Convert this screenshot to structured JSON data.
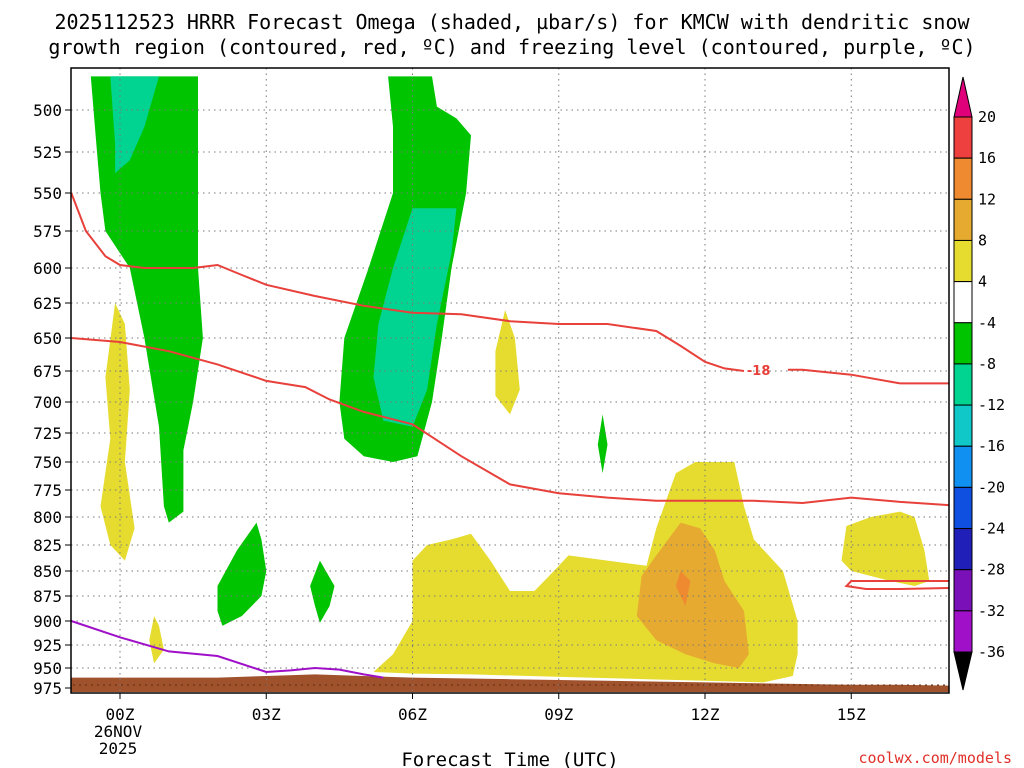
{
  "title": {
    "line1": "2025112523 HRRR Forecast Omega (shaded, µbar/s) for KMCW with dendritic snow",
    "line2": "growth region (contoured, red, ºC) and freezing level (contoured, purple, ºC)"
  },
  "chart_data": {
    "type": "contour",
    "title": "2025112523 HRRR Forecast Omega (shaded, µbar/s) for KMCW with dendritic snow growth region (contoured, red, ºC) and freezing level (contoured, purple, ºC)",
    "xlabel": "Forecast Time (UTC)",
    "ylabel": "",
    "xlim": [
      -1,
      17
    ],
    "ylim": [
      975,
      480
    ],
    "x_ticks": [
      {
        "hour": 0,
        "label": "00Z",
        "sub1": "26NOV",
        "sub2": "2025"
      },
      {
        "hour": 3,
        "label": "03Z"
      },
      {
        "hour": 6,
        "label": "06Z"
      },
      {
        "hour": 9,
        "label": "09Z"
      },
      {
        "hour": 12,
        "label": "12Z"
      },
      {
        "hour": 15,
        "label": "15Z"
      }
    ],
    "y_ticks": [
      500,
      525,
      550,
      575,
      600,
      625,
      650,
      675,
      700,
      725,
      750,
      775,
      800,
      825,
      850,
      875,
      900,
      925,
      950,
      975
    ],
    "colorbar": {
      "labels": [
        "20",
        "16",
        "12",
        "8",
        "4",
        "-4",
        "-8",
        "-12",
        "-16",
        "-20",
        "-24",
        "-28",
        "-32",
        "-36"
      ],
      "colors": [
        "#e0007a",
        "#ef4040",
        "#ef8a30",
        "#e6aa30",
        "#e6dc30",
        "#ffffff",
        "#00c400",
        "#00d490",
        "#10c8c8",
        "#1090f0",
        "#1050e0",
        "#2020b8",
        "#7a10b8",
        "#a010c8",
        "#a0a0a0",
        "#000000"
      ]
    },
    "contour_labels": [
      {
        "text": "-18",
        "hour": 13.1,
        "pressure": 675
      }
    ],
    "fill_regions": [
      {
        "name": "omega-fill-green-A",
        "color": "#00c400",
        "points": [
          [
            -0.6,
            480
          ],
          [
            -0.5,
            515
          ],
          [
            -0.4,
            550
          ],
          [
            -0.3,
            575
          ],
          [
            0.2,
            600
          ],
          [
            0.5,
            650
          ],
          [
            0.8,
            720
          ],
          [
            0.9,
            790
          ],
          [
            1.0,
            805
          ],
          [
            1.3,
            795
          ],
          [
            1.3,
            740
          ],
          [
            1.5,
            700
          ],
          [
            1.7,
            650
          ],
          [
            1.6,
            600
          ],
          [
            1.6,
            540
          ],
          [
            1.6,
            480
          ]
        ]
      },
      {
        "name": "omega-fill-teal-A",
        "color": "#00d490",
        "points": [
          [
            -0.2,
            480
          ],
          [
            -0.1,
            520
          ],
          [
            -0.1,
            538
          ],
          [
            0.2,
            530
          ],
          [
            0.5,
            510
          ],
          [
            0.8,
            480
          ]
        ]
      },
      {
        "name": "omega-fill-green-B",
        "color": "#00c400",
        "points": [
          [
            5.5,
            480
          ],
          [
            5.6,
            510
          ],
          [
            5.6,
            550
          ],
          [
            5.1,
            600
          ],
          [
            4.6,
            650
          ],
          [
            4.5,
            700
          ],
          [
            4.6,
            730
          ],
          [
            5.0,
            745
          ],
          [
            5.6,
            750
          ],
          [
            6.1,
            745
          ],
          [
            6.4,
            700
          ],
          [
            6.6,
            650
          ],
          [
            6.8,
            600
          ],
          [
            7.1,
            550
          ],
          [
            7.2,
            515
          ],
          [
            6.9,
            505
          ],
          [
            6.5,
            498
          ],
          [
            6.4,
            480
          ]
        ]
      },
      {
        "name": "omega-fill-teal-B",
        "color": "#00d490",
        "points": [
          [
            6.0,
            560
          ],
          [
            5.6,
            600
          ],
          [
            5.3,
            640
          ],
          [
            5.2,
            680
          ],
          [
            5.4,
            715
          ],
          [
            6.0,
            720
          ],
          [
            6.3,
            690
          ],
          [
            6.5,
            640
          ],
          [
            6.8,
            590
          ],
          [
            6.9,
            560
          ]
        ]
      },
      {
        "name": "omega-fill-green-C",
        "color": "#00c400",
        "points": [
          [
            2.8,
            805
          ],
          [
            2.4,
            830
          ],
          [
            2.0,
            865
          ],
          [
            2.0,
            890
          ],
          [
            2.1,
            905
          ],
          [
            2.5,
            895
          ],
          [
            2.9,
            875
          ],
          [
            3.0,
            850
          ],
          [
            2.9,
            820
          ]
        ]
      },
      {
        "name": "omega-fill-green-D",
        "color": "#00c400",
        "points": [
          [
            4.1,
            840
          ],
          [
            3.9,
            865
          ],
          [
            4.0,
            885
          ],
          [
            4.1,
            902
          ],
          [
            4.3,
            885
          ],
          [
            4.4,
            865
          ]
        ]
      },
      {
        "name": "omega-fill-green-E",
        "color": "#00c400",
        "points": [
          [
            9.9,
            710
          ],
          [
            9.8,
            735
          ],
          [
            9.9,
            760
          ],
          [
            10.0,
            735
          ]
        ]
      },
      {
        "name": "omega-fill-yellow-A",
        "color": "#e6dc30",
        "points": [
          [
            -0.1,
            625
          ],
          [
            -0.3,
            680
          ],
          [
            -0.2,
            730
          ],
          [
            -0.4,
            790
          ],
          [
            -0.2,
            825
          ],
          [
            0.1,
            840
          ],
          [
            0.3,
            810
          ],
          [
            0.1,
            750
          ],
          [
            0.2,
            690
          ],
          [
            0.1,
            640
          ]
        ]
      },
      {
        "name": "omega-fill-yellow-B",
        "color": "#e6dc30",
        "points": [
          [
            0.7,
            895
          ],
          [
            0.6,
            920
          ],
          [
            0.7,
            945
          ],
          [
            0.9,
            930
          ],
          [
            0.8,
            905
          ]
        ]
      },
      {
        "name": "omega-fill-yellow-C",
        "color": "#e6dc30",
        "points": [
          [
            7.9,
            630
          ],
          [
            7.7,
            660
          ],
          [
            7.7,
            695
          ],
          [
            8.0,
            710
          ],
          [
            8.2,
            690
          ],
          [
            8.1,
            650
          ]
        ]
      },
      {
        "name": "omega-fill-yellow-D",
        "color": "#e6dc30",
        "points": [
          [
            5.2,
            955
          ],
          [
            5.6,
            935
          ],
          [
            6.0,
            900
          ],
          [
            6.0,
            840
          ],
          [
            6.3,
            825
          ],
          [
            6.8,
            820
          ],
          [
            7.2,
            815
          ],
          [
            7.6,
            840
          ],
          [
            8.0,
            870
          ],
          [
            8.5,
            870
          ],
          [
            8.9,
            850
          ],
          [
            9.2,
            835
          ],
          [
            10.0,
            840
          ],
          [
            10.8,
            845
          ],
          [
            11.0,
            810
          ],
          [
            11.4,
            760
          ],
          [
            11.8,
            750
          ],
          [
            12.6,
            750
          ],
          [
            12.8,
            790
          ],
          [
            13.0,
            820
          ],
          [
            13.6,
            850
          ],
          [
            13.9,
            900
          ],
          [
            13.9,
            935
          ],
          [
            13.8,
            960
          ],
          [
            13.2,
            968
          ],
          [
            12.0,
            966
          ],
          [
            10.8,
            964
          ],
          [
            9.6,
            962
          ],
          [
            8.4,
            960
          ],
          [
            7.2,
            958
          ],
          [
            6.0,
            957
          ]
        ]
      },
      {
        "name": "omega-fill-orange-A",
        "color": "#e6aa30",
        "points": [
          [
            11.5,
            805
          ],
          [
            11.0,
            835
          ],
          [
            10.7,
            855
          ],
          [
            10.6,
            895
          ],
          [
            11.0,
            920
          ],
          [
            11.6,
            935
          ],
          [
            12.2,
            945
          ],
          [
            12.7,
            950
          ],
          [
            12.9,
            935
          ],
          [
            12.8,
            890
          ],
          [
            12.4,
            860
          ],
          [
            12.2,
            830
          ],
          [
            11.9,
            810
          ]
        ]
      },
      {
        "name": "omega-fill-red-A",
        "color": "#ef8a30",
        "points": [
          [
            11.5,
            850
          ],
          [
            11.4,
            865
          ],
          [
            11.6,
            885
          ],
          [
            11.7,
            860
          ]
        ]
      },
      {
        "name": "omega-fill-yellow-E",
        "color": "#e6dc30",
        "points": [
          [
            14.9,
            808
          ],
          [
            14.8,
            840
          ],
          [
            15.0,
            850
          ],
          [
            15.8,
            860
          ],
          [
            16.3,
            865
          ],
          [
            16.6,
            860
          ],
          [
            16.5,
            830
          ],
          [
            16.3,
            800
          ],
          [
            16.0,
            795
          ],
          [
            15.4,
            800
          ]
        ]
      }
    ],
    "contours": [
      {
        "name": "dgz-upper-line",
        "color": "#e8403a",
        "points": [
          [
            -1,
            550
          ],
          [
            -0.7,
            575
          ],
          [
            -0.3,
            592
          ],
          [
            0,
            598
          ],
          [
            0.5,
            600
          ],
          [
            1.0,
            600
          ],
          [
            1.5,
            600
          ],
          [
            2.0,
            598
          ],
          [
            2.5,
            605
          ],
          [
            3.0,
            612
          ],
          [
            4.0,
            620
          ],
          [
            5.0,
            627
          ],
          [
            6.0,
            632
          ],
          [
            7.0,
            633
          ],
          [
            8.0,
            638
          ],
          [
            9.0,
            640
          ],
          [
            10.0,
            640
          ],
          [
            11.0,
            645
          ],
          [
            11.5,
            656
          ],
          [
            12.0,
            668
          ],
          [
            12.4,
            673
          ],
          [
            12.8,
            675
          ]
        ]
      },
      {
        "name": "dgz-upper-line-right",
        "color": "#e8403a",
        "points": [
          [
            13.7,
            674
          ],
          [
            14.0,
            674
          ],
          [
            15.0,
            678
          ],
          [
            16.0,
            685
          ],
          [
            17,
            685
          ]
        ]
      },
      {
        "name": "dgz-lower-line",
        "color": "#e8403a",
        "points": [
          [
            -1,
            650
          ],
          [
            0,
            653
          ],
          [
            1.0,
            660
          ],
          [
            2.0,
            670
          ],
          [
            3.0,
            683
          ],
          [
            3.8,
            688
          ],
          [
            4.3,
            698
          ],
          [
            5.0,
            708
          ],
          [
            6.0,
            718
          ],
          [
            7.0,
            745
          ],
          [
            8.0,
            770
          ],
          [
            9.0,
            778
          ],
          [
            10.0,
            782
          ],
          [
            11.0,
            785
          ],
          [
            12.0,
            785
          ],
          [
            13.0,
            785
          ],
          [
            14.0,
            787
          ],
          [
            15.0,
            782
          ],
          [
            16.0,
            786
          ],
          [
            17,
            789
          ]
        ]
      },
      {
        "name": "dgz-small-loop",
        "color": "#e8403a",
        "points": [
          [
            17,
            860
          ],
          [
            16.5,
            860
          ],
          [
            15.8,
            860
          ],
          [
            15.0,
            860
          ],
          [
            14.9,
            865
          ],
          [
            15.3,
            868
          ],
          [
            16.0,
            868
          ],
          [
            17,
            867
          ]
        ]
      },
      {
        "name": "freezing-level-line",
        "color": "#a010c8",
        "points": [
          [
            -1,
            900
          ],
          [
            0,
            917
          ],
          [
            1.0,
            932
          ],
          [
            2.0,
            937
          ],
          [
            3.0,
            955
          ],
          [
            3.5,
            953
          ],
          [
            4.0,
            950
          ],
          [
            4.5,
            952
          ],
          [
            5.0,
            958
          ],
          [
            5.4,
            962
          ]
        ]
      }
    ],
    "terrain": {
      "color": "#a0522d",
      "points": [
        [
          -1,
          962
        ],
        [
          0,
          962
        ],
        [
          1,
          962
        ],
        [
          2,
          962
        ],
        [
          3,
          960
        ],
        [
          4,
          958
        ],
        [
          5,
          960
        ],
        [
          6,
          962
        ],
        [
          8,
          964
        ],
        [
          10,
          966
        ],
        [
          12,
          968
        ],
        [
          14,
          970
        ],
        [
          15,
          971
        ],
        [
          16,
          971
        ],
        [
          17,
          972
        ],
        [
          17,
          980
        ],
        [
          -1,
          980
        ]
      ]
    }
  },
  "footer": {
    "xlabel": "Forecast Time (UTC)",
    "watermark": "coolwx.com/models"
  },
  "colors": {
    "frame": "#000000",
    "grid": "#7a7a7a",
    "dgz": "#e8403a",
    "freezing": "#a010c8",
    "terrain": "#a0522d"
  }
}
